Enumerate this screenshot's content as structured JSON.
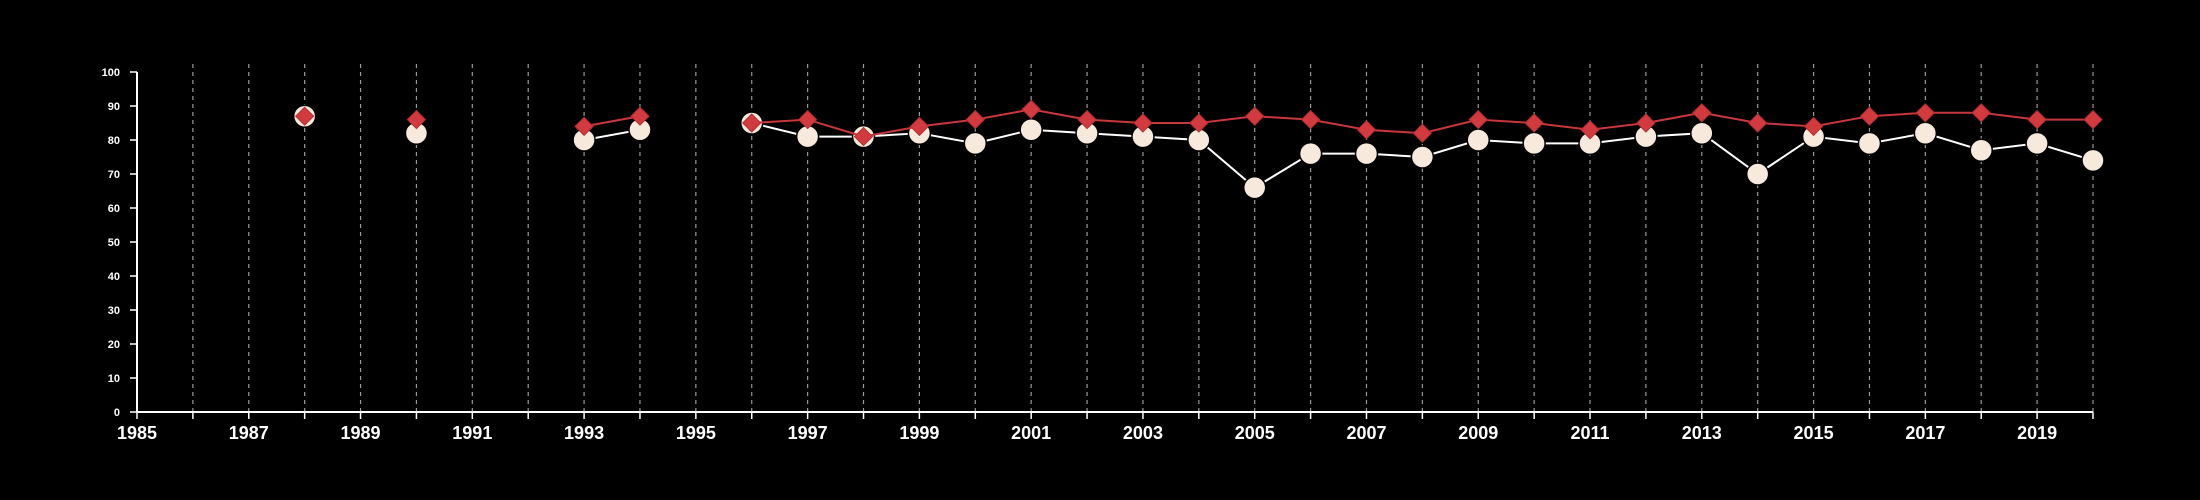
{
  "chart_data": {
    "type": "line",
    "title": "",
    "xlabel": "",
    "ylabel": "",
    "xlim": [
      1985,
      2020
    ],
    "ylim": [
      0,
      100
    ],
    "x_ticks": [
      1985,
      1987,
      1989,
      1991,
      1993,
      1995,
      1997,
      1999,
      2001,
      2003,
      2005,
      2007,
      2009,
      2011,
      2013,
      2015,
      2017,
      2019
    ],
    "y_ticks": [
      0,
      10,
      20,
      30,
      40,
      50,
      60,
      70,
      80,
      90,
      100
    ],
    "vertical_gridlines_dashed": true,
    "horizontal_gridlines": false,
    "legend": "none",
    "series": [
      {
        "marker": "circle",
        "color": "#ffffff",
        "marker_fill": "#f7e9dc",
        "points": [
          [
            1988,
            87
          ],
          [
            1990,
            82
          ],
          [
            1993,
            80
          ],
          [
            1994,
            83
          ],
          [
            1996,
            85
          ],
          [
            1997,
            81
          ],
          [
            1998,
            81
          ],
          [
            1999,
            82
          ],
          [
            2000,
            79
          ],
          [
            2001,
            83
          ],
          [
            2002,
            82
          ],
          [
            2003,
            81
          ],
          [
            2004,
            80
          ],
          [
            2005,
            66
          ],
          [
            2006,
            76
          ],
          [
            2007,
            76
          ],
          [
            2008,
            75
          ],
          [
            2009,
            80
          ],
          [
            2010,
            79
          ],
          [
            2011,
            79
          ],
          [
            2012,
            81
          ],
          [
            2013,
            82
          ],
          [
            2014,
            70
          ],
          [
            2015,
            81
          ],
          [
            2016,
            79
          ],
          [
            2017,
            82
          ],
          [
            2018,
            77
          ],
          [
            2019,
            79
          ],
          [
            2020,
            74
          ]
        ]
      },
      {
        "marker": "diamond",
        "color": "#c8373c",
        "marker_fill": "#d13b3f",
        "points": [
          [
            1988,
            87
          ],
          [
            1990,
            86
          ],
          [
            1993,
            84
          ],
          [
            1994,
            87
          ],
          [
            1996,
            85
          ],
          [
            1997,
            86
          ],
          [
            1998,
            81
          ],
          [
            1999,
            84
          ],
          [
            2000,
            86
          ],
          [
            2001,
            89
          ],
          [
            2002,
            86
          ],
          [
            2003,
            85
          ],
          [
            2004,
            85
          ],
          [
            2005,
            87
          ],
          [
            2006,
            86
          ],
          [
            2007,
            83
          ],
          [
            2008,
            82
          ],
          [
            2009,
            86
          ],
          [
            2010,
            85
          ],
          [
            2011,
            83
          ],
          [
            2012,
            85
          ],
          [
            2013,
            88
          ],
          [
            2014,
            85
          ],
          [
            2015,
            84
          ],
          [
            2016,
            87
          ],
          [
            2017,
            88
          ],
          [
            2018,
            88
          ],
          [
            2019,
            86
          ],
          [
            2020,
            86
          ]
        ]
      }
    ]
  }
}
